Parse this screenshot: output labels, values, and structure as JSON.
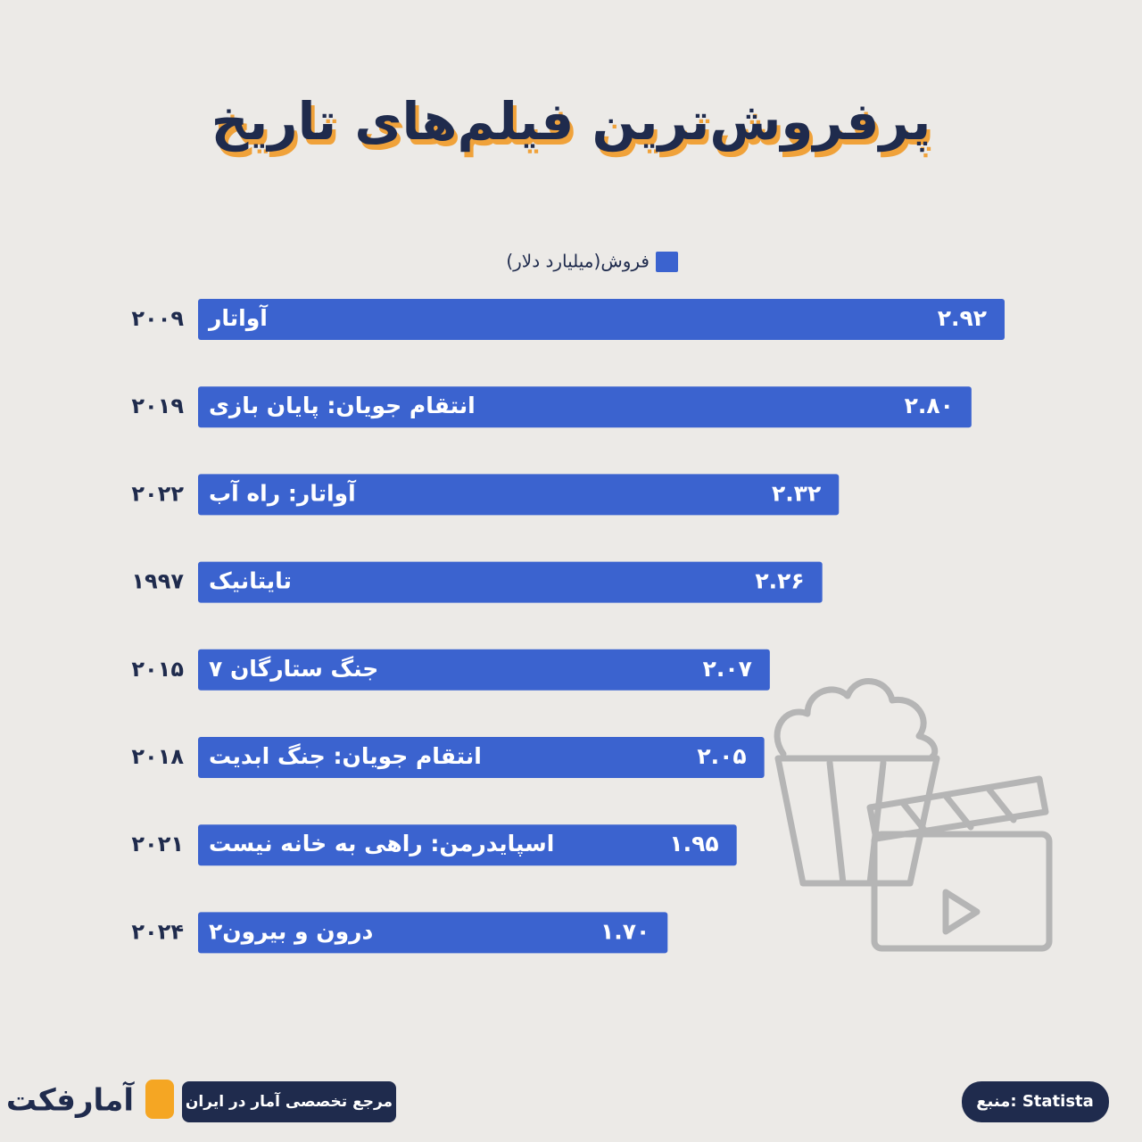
{
  "chart_data": {
    "type": "bar",
    "orientation": "horizontal",
    "title": "پرفروش‌ترین فیلم‌های تاریخ",
    "categories": [
      "آواتار",
      "انتقام جویان: پایان بازی",
      "آواتار: راه آب",
      "تایتانیک",
      "جنگ ستارگان ۷",
      "انتقام جویان: جنگ ابدیت",
      "اسپایدرمن: راهی به خانه نیست",
      "درون و بیرون۲"
    ],
    "years": [
      "۲۰۰۹",
      "۲۰۱۹",
      "۲۰۲۲",
      "۱۹۹۷",
      "۲۰۱۵",
      "۲۰۱۸",
      "۲۰۲۱",
      "۲۰۲۴"
    ],
    "series": [
      {
        "name": "فروش(میلیارد دلار)",
        "color": "#3b63cf",
        "values": [
          2.92,
          2.8,
          2.32,
          2.26,
          2.07,
          2.05,
          1.95,
          1.7
        ],
        "value_labels": [
          "۲.۹۲",
          "۲.۸۰",
          "۲.۳۲",
          "۲.۲۶",
          "۲.۰۷",
          "۲.۰۵",
          "۱.۹۵",
          "۱.۷۰"
        ]
      }
    ]
  },
  "footer": {
    "brand": "آمارفکت",
    "tagline": "مرجع تخصصی آمار در ایران",
    "source": "منبع: Statista"
  }
}
